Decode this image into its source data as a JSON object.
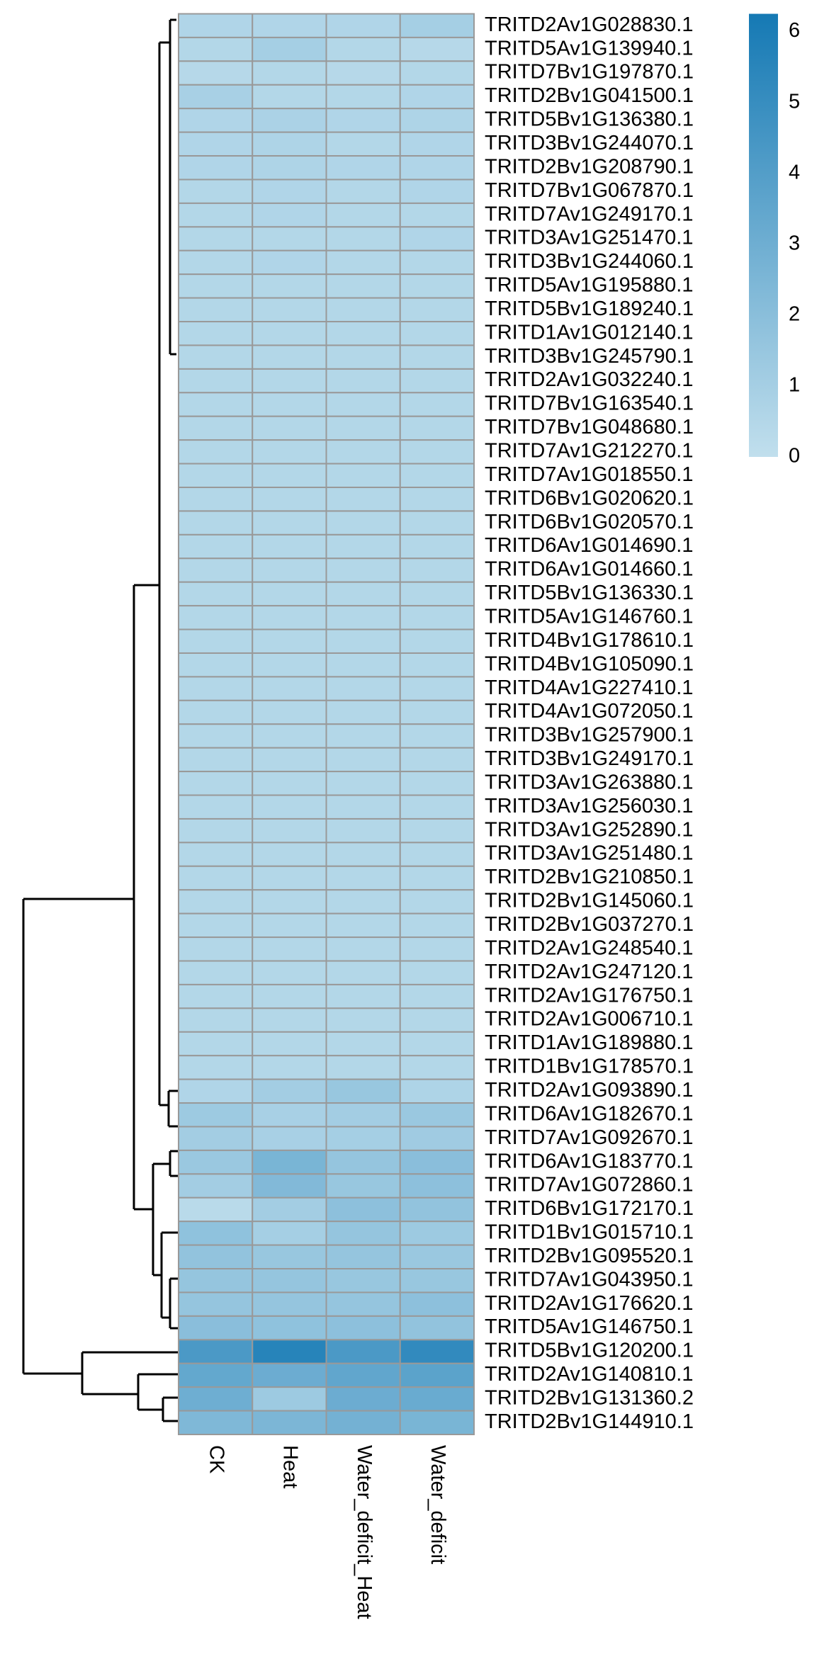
{
  "chart_data": {
    "type": "heatmap",
    "categories": [
      "CK",
      "Heat",
      "Water_deficit_Heat",
      "Water_deficit"
    ],
    "rows": [
      "TRITD2Av1G028830.1",
      "TRITD5Av1G139940.1",
      "TRITD7Bv1G197870.1",
      "TRITD2Bv1G041500.1",
      "TRITD5Bv1G136380.1",
      "TRITD3Bv1G244070.1",
      "TRITD2Bv1G208790.1",
      "TRITD7Bv1G067870.1",
      "TRITD7Av1G249170.1",
      "TRITD3Av1G251470.1",
      "TRITD3Bv1G244060.1",
      "TRITD5Av1G195880.1",
      "TRITD5Bv1G189240.1",
      "TRITD1Av1G012140.1",
      "TRITD3Bv1G245790.1",
      "TRITD2Av1G032240.1",
      "TRITD7Bv1G163540.1",
      "TRITD7Bv1G048680.1",
      "TRITD7Av1G212270.1",
      "TRITD7Av1G018550.1",
      "TRITD6Bv1G020620.1",
      "TRITD6Bv1G020570.1",
      "TRITD6Av1G014690.1",
      "TRITD6Av1G014660.1",
      "TRITD5Bv1G136330.1",
      "TRITD5Av1G146760.1",
      "TRITD4Bv1G178610.1",
      "TRITD4Bv1G105090.1",
      "TRITD4Av1G227410.1",
      "TRITD4Av1G072050.1",
      "TRITD3Bv1G257900.1",
      "TRITD3Bv1G249170.1",
      "TRITD3Av1G263880.1",
      "TRITD3Av1G256030.1",
      "TRITD3Av1G252890.1",
      "TRITD3Av1G251480.1",
      "TRITD2Bv1G210850.1",
      "TRITD2Bv1G145060.1",
      "TRITD2Bv1G037270.1",
      "TRITD2Av1G248540.1",
      "TRITD2Av1G247120.1",
      "TRITD2Av1G176750.1",
      "TRITD2Av1G006710.1",
      "TRITD1Av1G189880.1",
      "TRITD1Bv1G178570.1",
      "TRITD2Av1G093890.1",
      "TRITD6Av1G182670.1",
      "TRITD7Av1G092670.1",
      "TRITD6Av1G183770.1",
      "TRITD7Av1G072860.1",
      "TRITD6Bv1G172170.1",
      "TRITD1Bv1G015710.1",
      "TRITD2Bv1G095520.1",
      "TRITD7Av1G043950.1",
      "TRITD2Av1G176620.1",
      "TRITD5Av1G146750.1",
      "TRITD5Bv1G120200.1",
      "TRITD2Av1G140810.1",
      "TRITD2Bv1G131360.2",
      "TRITD2Bv1G144910.1"
    ],
    "values": [
      [
        0.6,
        0.6,
        0.6,
        1.0
      ],
      [
        0.5,
        1.0,
        0.5,
        0.4
      ],
      [
        0.4,
        0.5,
        0.4,
        0.5
      ],
      [
        0.9,
        0.5,
        0.5,
        0.6
      ],
      [
        0.6,
        0.8,
        0.6,
        0.7
      ],
      [
        0.6,
        0.7,
        0.5,
        0.6
      ],
      [
        0.6,
        0.7,
        0.6,
        0.6
      ],
      [
        0.5,
        0.6,
        0.5,
        0.6
      ],
      [
        0.5,
        0.6,
        0.5,
        0.5
      ],
      [
        0.5,
        0.5,
        0.5,
        0.6
      ],
      [
        0.5,
        0.6,
        0.5,
        0.5
      ],
      [
        0.5,
        0.5,
        0.5,
        0.5
      ],
      [
        0.5,
        0.5,
        0.5,
        0.5
      ],
      [
        0.5,
        0.5,
        0.5,
        0.5
      ],
      [
        0.5,
        0.5,
        0.5,
        0.5
      ],
      [
        0.5,
        0.5,
        0.5,
        0.5
      ],
      [
        0.5,
        0.5,
        0.5,
        0.5
      ],
      [
        0.5,
        0.5,
        0.5,
        0.5
      ],
      [
        0.5,
        0.5,
        0.5,
        0.5
      ],
      [
        0.5,
        0.5,
        0.5,
        0.5
      ],
      [
        0.5,
        0.5,
        0.5,
        0.5
      ],
      [
        0.5,
        0.5,
        0.5,
        0.5
      ],
      [
        0.5,
        0.5,
        0.5,
        0.5
      ],
      [
        0.5,
        0.5,
        0.5,
        0.5
      ],
      [
        0.5,
        0.5,
        0.5,
        0.5
      ],
      [
        0.5,
        0.5,
        0.5,
        0.5
      ],
      [
        0.5,
        0.5,
        0.5,
        0.5
      ],
      [
        0.5,
        0.5,
        0.5,
        0.5
      ],
      [
        0.5,
        0.5,
        0.5,
        0.5
      ],
      [
        0.5,
        0.5,
        0.5,
        0.5
      ],
      [
        0.5,
        0.5,
        0.5,
        0.5
      ],
      [
        0.5,
        0.5,
        0.5,
        0.5
      ],
      [
        0.5,
        0.5,
        0.5,
        0.5
      ],
      [
        0.5,
        0.5,
        0.5,
        0.5
      ],
      [
        0.5,
        0.5,
        0.5,
        0.5
      ],
      [
        0.5,
        0.5,
        0.5,
        0.5
      ],
      [
        0.5,
        0.5,
        0.5,
        0.5
      ],
      [
        0.5,
        0.5,
        0.5,
        0.5
      ],
      [
        0.5,
        0.5,
        0.5,
        0.5
      ],
      [
        0.5,
        0.5,
        0.5,
        0.5
      ],
      [
        0.5,
        0.5,
        0.5,
        0.5
      ],
      [
        0.5,
        0.5,
        0.5,
        0.5
      ],
      [
        0.5,
        0.5,
        0.5,
        0.5
      ],
      [
        0.5,
        0.5,
        0.5,
        0.5
      ],
      [
        0.5,
        0.5,
        0.5,
        0.5
      ],
      [
        0.6,
        1.1,
        1.5,
        0.7
      ],
      [
        1.3,
        0.9,
        1.1,
        1.4
      ],
      [
        1.1,
        0.9,
        1.0,
        1.2
      ],
      [
        1.4,
        2.6,
        1.6,
        2.0
      ],
      [
        1.1,
        2.3,
        1.5,
        1.9
      ],
      [
        0.3,
        1.1,
        1.9,
        1.7
      ],
      [
        1.8,
        1.0,
        1.6,
        1.3
      ],
      [
        1.7,
        1.5,
        1.6,
        1.4
      ],
      [
        1.6,
        1.6,
        1.5,
        1.5
      ],
      [
        1.6,
        1.6,
        1.6,
        1.9
      ],
      [
        2.0,
        1.8,
        1.9,
        1.7
      ],
      [
        4.3,
        5.6,
        4.3,
        5.2
      ],
      [
        3.4,
        3.1,
        3.5,
        3.7
      ],
      [
        3.0,
        1.3,
        3.1,
        3.2
      ],
      [
        2.4,
        2.5,
        2.8,
        2.6
      ]
    ],
    "zlim": [
      0,
      6.25
    ],
    "zticks": [
      0,
      1,
      2,
      3,
      4,
      5,
      6
    ],
    "colors": [
      "#c1dfed",
      "#1579b4"
    ]
  }
}
